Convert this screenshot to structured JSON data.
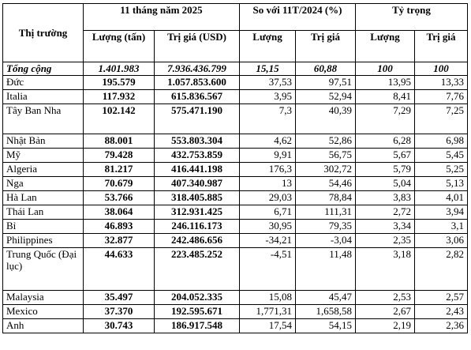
{
  "header": {
    "market": "Thị trường",
    "period": "11 tháng năm 2025",
    "compare": "So với 11T/2024 (%)",
    "share": "Tỷ trọng",
    "volume_ton": "Lượng (tấn)",
    "value_usd": "Trị giá (USD)",
    "volume": "Lượng",
    "value": "Trị giá"
  },
  "total": {
    "name": "Tổng cộng",
    "vol": "1.401.983",
    "val": "7.936.436.799",
    "cvol": "15,15",
    "cval": "60,88",
    "svol": "100",
    "sval": "100"
  },
  "rows": [
    {
      "name": "Đức",
      "vol": "195.579",
      "val": "1.057.853.600",
      "cvol": "37,53",
      "cval": "97,51",
      "svol": "13,95",
      "sval": "13,33"
    },
    {
      "name": "Italia",
      "vol": "117.932",
      "val": "615.836.567",
      "cvol": "3,95",
      "cval": "52,94",
      "svol": "8,41",
      "sval": "7,76"
    },
    {
      "name": "Tây Ban Nha",
      "vol": "102.142",
      "val": "575.471.190",
      "cvol": "7,3",
      "cval": "40,39",
      "svol": "7,29",
      "sval": "7,25"
    },
    {
      "name": "Nhật Bản",
      "vol": "88.001",
      "val": "553.803.304",
      "cvol": "4,62",
      "cval": "52,86",
      "svol": "6,28",
      "sval": "6,98"
    },
    {
      "name": "Mỹ",
      "vol": "79.428",
      "val": "432.753.859",
      "cvol": "9,91",
      "cval": "56,75",
      "svol": "5,67",
      "sval": "5,45"
    },
    {
      "name": "Algeria",
      "vol": "81.217",
      "val": "416.441.198",
      "cvol": "176,3",
      "cval": "302,72",
      "svol": "5,79",
      "sval": "5,25"
    },
    {
      "name": "Nga",
      "vol": "70.679",
      "val": "407.340.987",
      "cvol": "13",
      "cval": "54,46",
      "svol": "5,04",
      "sval": "5,13"
    },
    {
      "name": "Hà Lan",
      "vol": "53.766",
      "val": "318.405.885",
      "cvol": "29,03",
      "cval": "78,84",
      "svol": "3,83",
      "sval": "4,01"
    },
    {
      "name": "Thái Lan",
      "vol": "38.064",
      "val": "312.931.425",
      "cvol": "6,71",
      "cval": "111,31",
      "svol": "2,72",
      "sval": "3,94"
    },
    {
      "name": "Bỉ",
      "vol": "46.893",
      "val": "246.116.173",
      "cvol": "30,95",
      "cval": "79,35",
      "svol": "3,34",
      "sval": "3,1"
    },
    {
      "name": "Philippines",
      "vol": "32.877",
      "val": "242.486.656",
      "cvol": "-34,21",
      "cval": "-3,04",
      "svol": "2,35",
      "sval": "3,06"
    },
    {
      "name": "Trung Quốc (Đại lục)",
      "vol": "44.633",
      "val": "223.485.252",
      "cvol": "-4,51",
      "cval": "11,48",
      "svol": "3,18",
      "sval": "2,82"
    },
    {
      "name": "Malaysia",
      "vol": "35.497",
      "val": "204.052.335",
      "cvol": "15,08",
      "cval": "45,47",
      "svol": "2,53",
      "sval": "2,57"
    },
    {
      "name": "Mexico",
      "vol": "37.370",
      "val": "192.595.671",
      "cvol": "1,771,31",
      "cval": "1,658,58",
      "svol": "2,67",
      "sval": "2,43"
    },
    {
      "name": "Anh",
      "vol": "30.743",
      "val": "186.917.548",
      "cvol": "17,54",
      "cval": "54,15",
      "svol": "2,19",
      "sval": "2,36"
    }
  ]
}
